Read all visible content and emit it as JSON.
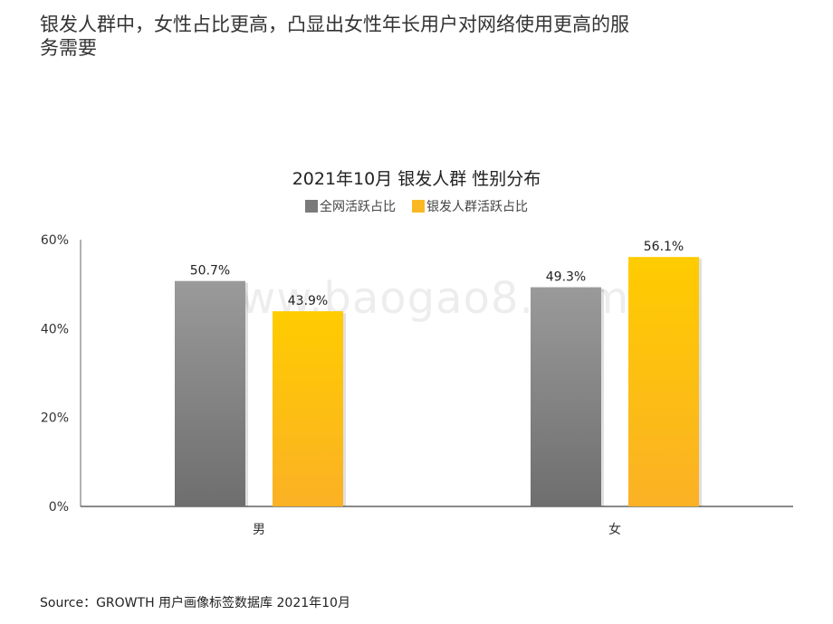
{
  "headline": "银发人群中，女性占比更高，凸显出女性年长用户对网络使用更高的服务需要",
  "chart_data": {
    "type": "bar",
    "title": "2021年10月 银发人群 性别分布",
    "categories": [
      "男",
      "女"
    ],
    "series": [
      {
        "name": "全网活跃占比",
        "values": [
          50.7,
          49.3
        ],
        "labels": [
          "50.7%",
          "49.3%"
        ],
        "color_top": "#9a9a9a",
        "color_bottom": "#6e6e6e",
        "legend_color": "#7a7a7a"
      },
      {
        "name": "银发人群活跃占比",
        "values": [
          43.9,
          56.1
        ],
        "labels": [
          "43.9%",
          "56.1%"
        ],
        "color_top": "#ffcc00",
        "color_bottom": "#fbb125",
        "legend_color": "#fbb825"
      }
    ],
    "y_ticks": [
      "0%",
      "20%",
      "40%",
      "60%"
    ],
    "y_tick_values": [
      0,
      20,
      40,
      60
    ],
    "ylim": [
      0,
      60
    ],
    "xlabel": "",
    "ylabel": "",
    "grid": false,
    "legend_position": "top"
  },
  "watermark": "www.baogao8.com",
  "source": "Source：GROWTH 用户画像标签数据库 2021年10月"
}
